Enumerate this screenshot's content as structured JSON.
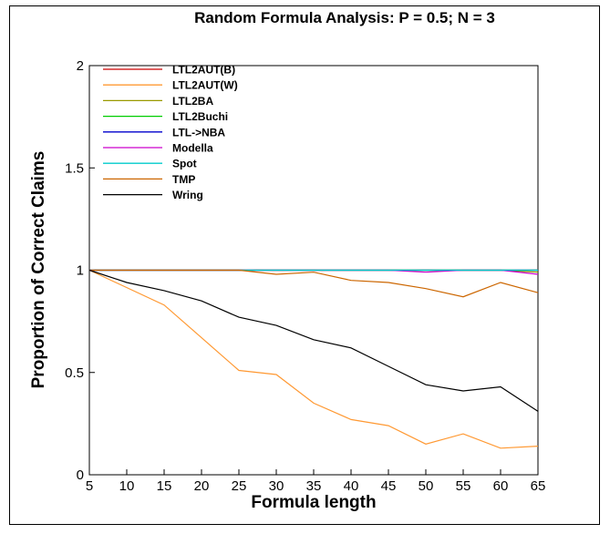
{
  "chart_data": {
    "type": "line",
    "title": "Random Formula Analysis: P = 0.5; N = 3",
    "xlabel": "Formula length",
    "ylabel": "Proportion of Correct Claims",
    "x": [
      5,
      15,
      25,
      30,
      35,
      40,
      45,
      50,
      55,
      60,
      65
    ],
    "xticks": [
      "5",
      "10",
      "15",
      "20",
      "25",
      "30",
      "35",
      "40",
      "45",
      "50",
      "55",
      "60",
      "65"
    ],
    "yticks": [
      "0",
      "0.5",
      "1",
      "1.5",
      "2"
    ],
    "xlim": [
      5,
      65
    ],
    "ylim": [
      0,
      2
    ],
    "legend_position": "top-left",
    "grid": false,
    "series": [
      {
        "name": "LTL2AUT(B)",
        "color": "#cc0000",
        "x": [
          5,
          15,
          25,
          30,
          35,
          40,
          45,
          50,
          55,
          60,
          65
        ],
        "values": [
          1,
          1,
          1,
          1,
          1,
          1,
          1,
          1,
          1,
          1,
          1
        ]
      },
      {
        "name": "LTL2AUT(W)",
        "color": "#ff9933",
        "x": [
          5,
          15,
          20,
          25,
          30,
          35,
          40,
          45,
          50,
          55,
          60,
          65
        ],
        "values": [
          1,
          0.83,
          0.67,
          0.51,
          0.49,
          0.35,
          0.27,
          0.24,
          0.15,
          0.2,
          0.13,
          0.14
        ]
      },
      {
        "name": "LTL2BA",
        "color": "#999900",
        "x": [
          5,
          15,
          25,
          30,
          35,
          40,
          45,
          50,
          55,
          60,
          65
        ],
        "values": [
          1,
          1,
          1,
          1,
          1,
          1,
          1,
          1,
          1,
          1,
          0.99
        ]
      },
      {
        "name": "LTL2Buchi",
        "color": "#00cc00",
        "x": [
          5,
          15,
          25,
          30,
          35,
          40,
          45,
          50,
          55,
          60,
          65
        ],
        "values": [
          1,
          1,
          1,
          1,
          1,
          1,
          1,
          1,
          1,
          1,
          1
        ]
      },
      {
        "name": "LTL->NBA",
        "color": "#0000cc",
        "x": [
          5,
          15,
          25,
          30,
          35,
          40,
          45,
          50,
          55,
          60,
          65
        ],
        "values": [
          1,
          1,
          1,
          1,
          1,
          1,
          1,
          1,
          1,
          1,
          1
        ]
      },
      {
        "name": "Modella",
        "color": "#cc00cc",
        "x": [
          5,
          15,
          25,
          30,
          35,
          40,
          45,
          50,
          55,
          60,
          65
        ],
        "values": [
          1,
          1,
          1,
          1,
          1,
          1,
          1,
          0.99,
          1,
          1,
          0.98
        ]
      },
      {
        "name": "Spot",
        "color": "#00cccc",
        "x": [
          5,
          15,
          25,
          30,
          35,
          40,
          45,
          50,
          55,
          60,
          65
        ],
        "values": [
          1,
          1,
          1,
          1,
          1,
          1,
          1,
          1,
          1,
          1,
          1
        ]
      },
      {
        "name": "TMP",
        "color": "#cc6600",
        "x": [
          5,
          15,
          25,
          30,
          35,
          40,
          45,
          50,
          55,
          60,
          65
        ],
        "values": [
          1,
          1,
          1,
          0.98,
          0.99,
          0.95,
          0.94,
          0.91,
          0.87,
          0.94,
          0.89
        ]
      },
      {
        "name": "Wring",
        "color": "#000000",
        "x": [
          5,
          10,
          15,
          20,
          25,
          30,
          35,
          40,
          45,
          50,
          55,
          60,
          65
        ],
        "values": [
          1,
          0.94,
          0.9,
          0.85,
          0.77,
          0.73,
          0.66,
          0.62,
          0.53,
          0.44,
          0.41,
          0.43,
          0.31
        ]
      }
    ]
  }
}
